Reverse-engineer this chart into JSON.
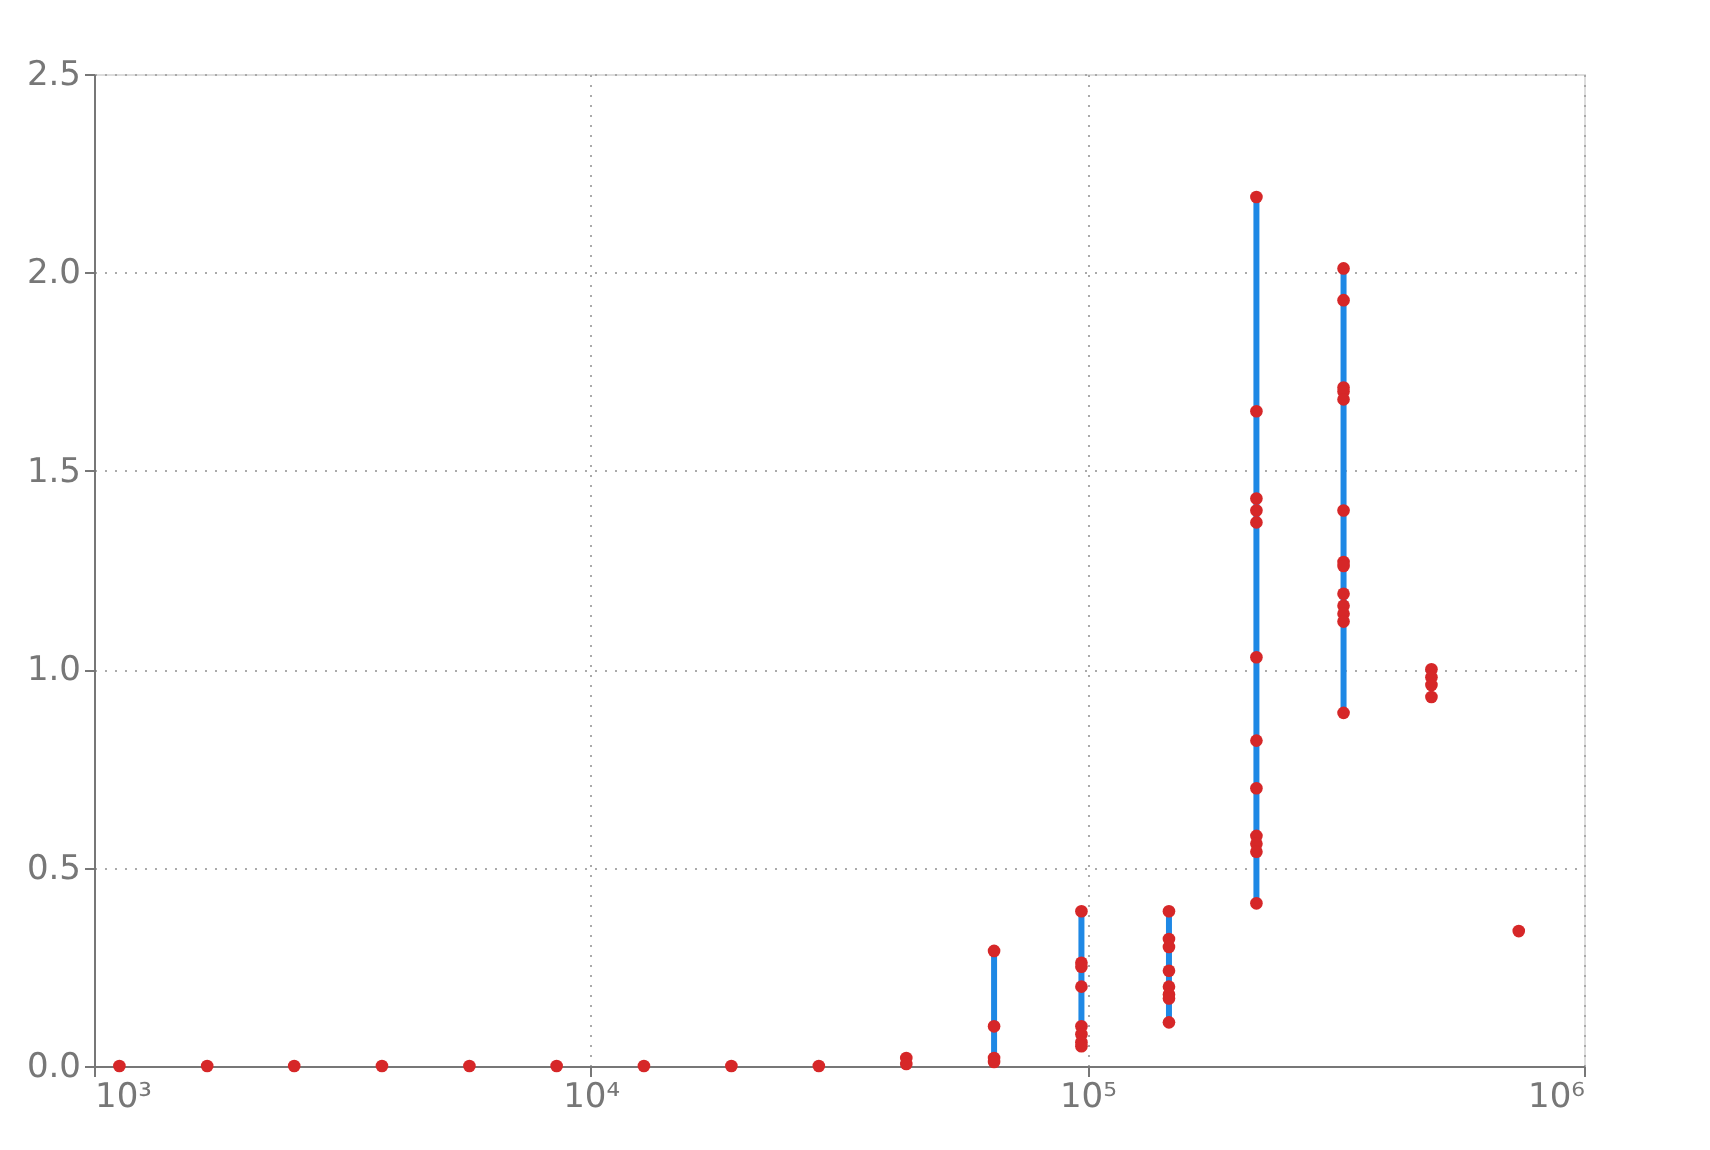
{
  "chart_data": {
    "type": "scatter",
    "log": "x",
    "grid": true,
    "xlim": [
      1000,
      1000000
    ],
    "xticks": [
      {
        "value": 1000,
        "label": "10³"
      },
      {
        "value": 10000,
        "label": "10⁴"
      },
      {
        "value": 100000,
        "label": "10⁵"
      },
      {
        "value": 1000000,
        "label": "10⁶"
      }
    ],
    "ylim": [
      0,
      2.5
    ],
    "yticks": [
      {
        "value": 0,
        "label": "0.0"
      },
      {
        "value": 0.5,
        "label": "0.5"
      },
      {
        "value": 1,
        "label": "1.0"
      },
      {
        "value": 1.5,
        "label": "1.5"
      },
      {
        "value": 2,
        "label": "2.0"
      },
      {
        "value": 2.5,
        "label": "2.5"
      }
    ],
    "series": [
      {
        "type": "bar",
        "color": "#1e88e5",
        "x": [
          64900,
          97300,
          146000,
          219000,
          328000
        ],
        "base": [
          0.01,
          0.05,
          0.11,
          0.41,
          0.89
        ],
        "values": [
          0.28,
          0.34,
          0.28,
          1.78,
          1.12
        ]
      },
      {
        "color": "#d62728",
        "marker": "circle",
        "x": [
          1125,
          1690,
          2530,
          3800,
          5700,
          8540,
          12800,
          19200,
          28800,
          43200,
          43200,
          64900,
          64900,
          64900,
          64900,
          97300,
          97300,
          97300,
          97300,
          97300,
          97300,
          97300,
          97300,
          146000,
          146000,
          146000,
          146000,
          146000,
          146000,
          146000,
          146000,
          219000,
          219000,
          219000,
          219000,
          219000,
          219000,
          219000,
          219000,
          219000,
          219000,
          219000,
          219000,
          328000,
          328000,
          328000,
          328000,
          328000,
          328000,
          328000,
          328000,
          328000,
          328000,
          328000,
          328000,
          328000,
          493000,
          493000,
          493000,
          493000,
          739000
        ],
        "values": [
          0,
          0,
          0,
          0,
          0,
          0,
          0,
          0,
          0,
          0.02,
          0.005,
          0.29,
          0.1,
          0.02,
          0.01,
          0.39,
          0.26,
          0.25,
          0.2,
          0.1,
          0.08,
          0.06,
          0.05,
          0.39,
          0.32,
          0.3,
          0.24,
          0.2,
          0.18,
          0.17,
          0.11,
          2.19,
          1.65,
          1.43,
          1.4,
          1.37,
          1.03,
          0.82,
          0.7,
          0.58,
          0.56,
          0.54,
          0.41,
          2.01,
          1.93,
          1.71,
          1.7,
          1.68,
          1.4,
          1.27,
          1.26,
          1.19,
          1.16,
          1.14,
          1.12,
          0.89,
          1.0,
          0.98,
          0.96,
          0.93,
          0.34
        ]
      }
    ]
  }
}
